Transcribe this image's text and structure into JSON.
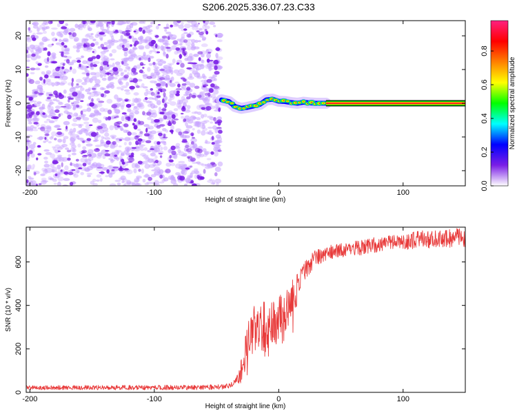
{
  "title": "S206.2025.336.07.23.C33",
  "colors": {
    "noise": "#7a1ee6",
    "noise_light": "#c9a6ff",
    "snr_line": "#e83a3a",
    "axes": "#000000"
  },
  "chart_data": [
    {
      "type": "heatmap",
      "name": "spectrogram",
      "xlabel": "Height of straight line (km)",
      "ylabel": "Frequency (Hz)",
      "xlim": [
        -203,
        150
      ],
      "ylim": [
        -24.5,
        24.5
      ],
      "xticks": [
        -200,
        -100,
        0,
        100
      ],
      "yticks": [
        -20,
        -10,
        0,
        10,
        20
      ],
      "xtick_labels": [
        "-200",
        "-100",
        "0",
        "100"
      ],
      "ytick_labels": [
        "-20",
        "-10",
        "0",
        "10",
        "20"
      ],
      "noise_region_km": [
        -203,
        -47
      ],
      "tone_start_km": 38,
      "tone_frequency_hz": 0,
      "signal_track": [
        {
          "x": -46,
          "f": 1.0
        },
        {
          "x": -40,
          "f": 0.5
        },
        {
          "x": -35,
          "f": -1.0
        },
        {
          "x": -30,
          "f": -1.5
        },
        {
          "x": -25,
          "f": -1.2
        },
        {
          "x": -20,
          "f": -0.8
        },
        {
          "x": -15,
          "f": -0.3
        },
        {
          "x": -10,
          "f": 1.0
        },
        {
          "x": -5,
          "f": 1.2
        },
        {
          "x": 0,
          "f": 0.6
        },
        {
          "x": 5,
          "f": 0.5
        },
        {
          "x": 10,
          "f": 0.2
        },
        {
          "x": 15,
          "f": 0.0
        },
        {
          "x": 20,
          "f": 0.3
        },
        {
          "x": 25,
          "f": 0.1
        },
        {
          "x": 30,
          "f": 0.0
        },
        {
          "x": 38,
          "f": 0.0
        }
      ]
    },
    {
      "type": "colorbar",
      "name": "amplitude-colorbar",
      "label": "Normalized spectral amplitude",
      "range": [
        0,
        0.98
      ],
      "ticks": [
        0.0,
        0.2,
        0.4,
        0.6,
        0.8
      ],
      "tick_labels": [
        "0.0",
        "0.2",
        "0.4",
        "0.6",
        "0.8"
      ],
      "colormap": [
        "#ffffff",
        "#7a1ee6",
        "#0000ff",
        "#00ffff",
        "#00ff00",
        "#ffff00",
        "#ff8000",
        "#ff0000",
        "#ff2080"
      ]
    },
    {
      "type": "line",
      "name": "snr",
      "xlabel": "Height of straight line (km)",
      "ylabel": "SNR (10 * v/v)",
      "xlim": [
        -203,
        150
      ],
      "ylim": [
        0,
        760
      ],
      "xticks": [
        -200,
        -100,
        0,
        100
      ],
      "yticks": [
        0,
        200,
        400,
        600
      ],
      "xtick_labels": [
        "-200",
        "-100",
        "0",
        "100"
      ],
      "ytick_labels": [
        "0",
        "200",
        "400",
        "600"
      ],
      "series": [
        {
          "name": "SNR",
          "color": "#e83a3a",
          "envelope": [
            {
              "x": -203,
              "y": 22
            },
            {
              "x": -60,
              "y": 22
            },
            {
              "x": -40,
              "y": 28
            },
            {
              "x": -32,
              "y": 60
            },
            {
              "x": -28,
              "y": 160
            },
            {
              "x": -25,
              "y": 230
            },
            {
              "x": -20,
              "y": 290
            },
            {
              "x": -15,
              "y": 310
            },
            {
              "x": -10,
              "y": 300
            },
            {
              "x": -5,
              "y": 310
            },
            {
              "x": 0,
              "y": 330
            },
            {
              "x": 5,
              "y": 370
            },
            {
              "x": 10,
              "y": 420
            },
            {
              "x": 15,
              "y": 470
            },
            {
              "x": 20,
              "y": 540
            },
            {
              "x": 25,
              "y": 590
            },
            {
              "x": 30,
              "y": 620
            },
            {
              "x": 40,
              "y": 645
            },
            {
              "x": 60,
              "y": 660
            },
            {
              "x": 90,
              "y": 690
            },
            {
              "x": 120,
              "y": 705
            },
            {
              "x": 150,
              "y": 712
            }
          ],
          "noise_amplitude": [
            {
              "x": -203,
              "a": 10
            },
            {
              "x": -35,
              "a": 12
            },
            {
              "x": -30,
              "a": 60
            },
            {
              "x": -20,
              "a": 110
            },
            {
              "x": -10,
              "a": 120
            },
            {
              "x": 0,
              "a": 110
            },
            {
              "x": 10,
              "a": 90
            },
            {
              "x": 20,
              "a": 60
            },
            {
              "x": 30,
              "a": 40
            },
            {
              "x": 40,
              "a": 32
            },
            {
              "x": 150,
              "a": 45
            }
          ]
        }
      ]
    }
  ]
}
